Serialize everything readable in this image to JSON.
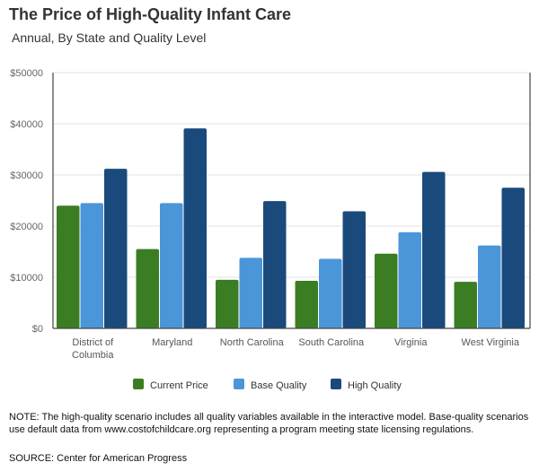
{
  "header": {
    "title": "The Price of High-Quality Infant Care",
    "subtitle": "Annual, By State and Quality Level"
  },
  "footer": {
    "note": "NOTE: The high-quality scenario includes all quality variables available in the interactive model. Base-quality scenarios use default data from www.costofchildcare.org representing a program meeting state licensing regulations.",
    "source": "SOURCE: Center for American Progress"
  },
  "chart_data": {
    "type": "bar",
    "title": "The Price of High-Quality Infant Care",
    "subtitle": "Annual, By State and Quality Level",
    "xlabel": "",
    "ylabel": "",
    "ylim": [
      0,
      50000
    ],
    "y_ticks": [
      "$0",
      "$10000",
      "$20000",
      "$30000",
      "$40000",
      "$50000"
    ],
    "y_tick_values": [
      0,
      10000,
      20000,
      30000,
      40000,
      50000
    ],
    "categories": [
      [
        "District of",
        "Columbia"
      ],
      [
        "Maryland"
      ],
      [
        "North Carolina"
      ],
      [
        "South Carolina"
      ],
      [
        "Virginia"
      ],
      [
        "West Virginia"
      ]
    ],
    "series": [
      {
        "name": "Current Price",
        "color": "#3b7d23",
        "values": [
          24000,
          15500,
          9500,
          9300,
          14600,
          9100
        ]
      },
      {
        "name": "Base Quality",
        "color": "#4a96d9",
        "values": [
          24500,
          24500,
          13800,
          13600,
          18800,
          16200
        ]
      },
      {
        "name": "High Quality",
        "color": "#1a4a7c",
        "values": [
          31200,
          39100,
          24900,
          22900,
          30600,
          27500
        ]
      }
    ],
    "grid": true,
    "legend": "bottom-center"
  }
}
